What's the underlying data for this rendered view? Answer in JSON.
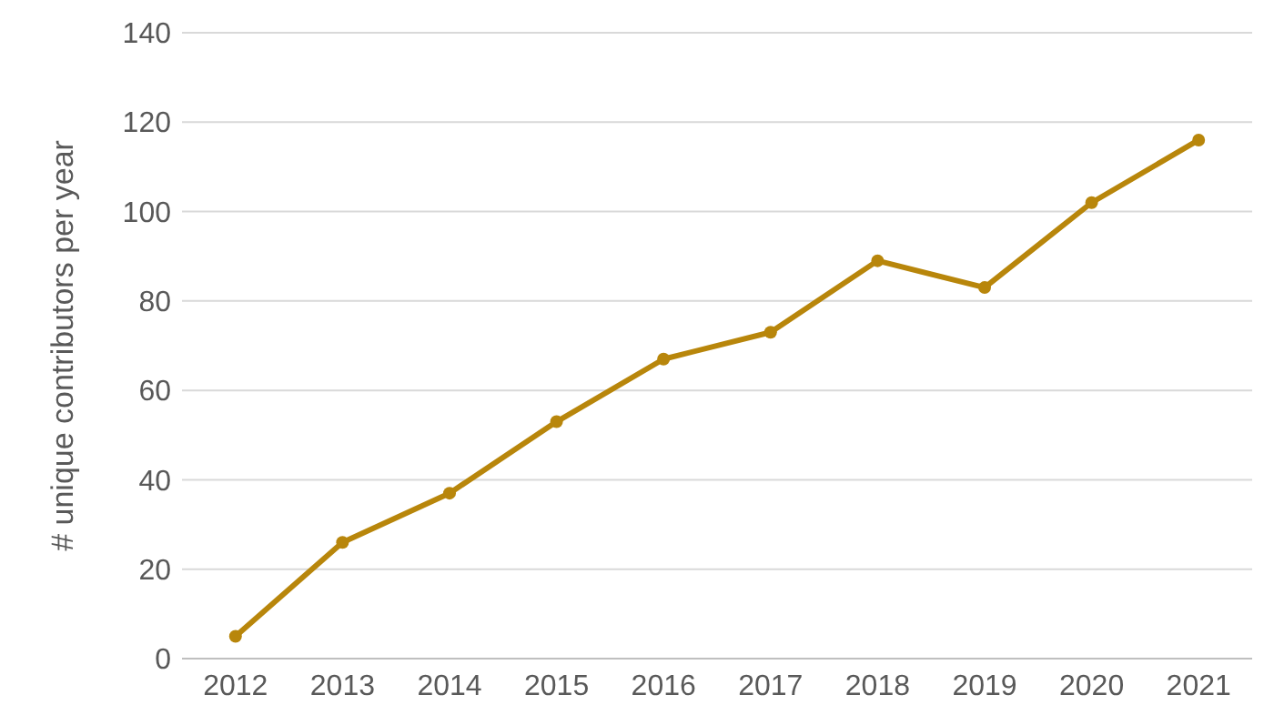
{
  "chart_data": {
    "type": "line",
    "ylabel": "# unique contributors per year",
    "categories": [
      "2012",
      "2013",
      "2014",
      "2015",
      "2016",
      "2017",
      "2018",
      "2019",
      "2020",
      "2021"
    ],
    "series": [
      {
        "color": "#b8860b",
        "values": [
          5,
          26,
          37,
          53,
          67,
          73,
          89,
          83,
          102,
          116
        ]
      }
    ],
    "ylim": [
      0,
      140
    ],
    "yticks": [
      0,
      20,
      40,
      60,
      80,
      100,
      120,
      140
    ],
    "grid": "y",
    "marker": "circle",
    "line_style": "solid"
  }
}
